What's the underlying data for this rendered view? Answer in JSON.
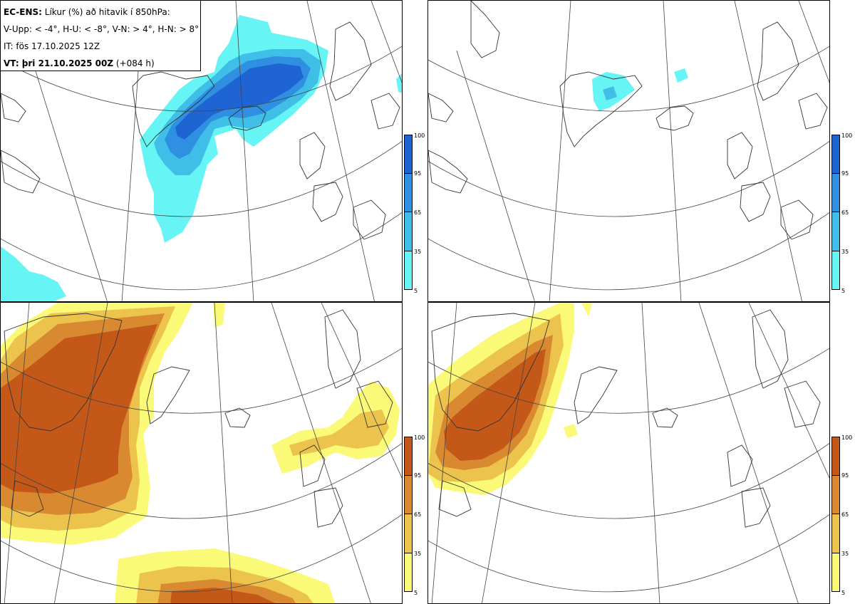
{
  "header": {
    "line1_bold": "EC-ENS:",
    "line1_rest": " Líkur (%) að hitavik í 850hPa:",
    "line2": "V-Upp: < -4°, H-U: < -8°, V-N: > 4°, H-N: > 8°",
    "line3": "IT: fös 17.10.2025 12Z",
    "line4_bold": "VT: þri 21.10.2025 00Z",
    "line4_rest": " (+084 h)"
  },
  "colorbar": {
    "ticks": [
      "100",
      "95",
      "65",
      "35",
      "5"
    ]
  },
  "colors": {
    "cold": [
      "#66f4f4",
      "#3fbfe8",
      "#2f8fe0",
      "#1e64d2"
    ],
    "warm": [
      "#fafa78",
      "#ecc34c",
      "#d98a30",
      "#c45818"
    ],
    "coast": "#333333",
    "grid": "#444444"
  },
  "panels": [
    {
      "name": "V-Upp",
      "scheme": "cold"
    },
    {
      "name": "H-U",
      "scheme": "cold"
    },
    {
      "name": "V-N",
      "scheme": "warm"
    },
    {
      "name": "H-N",
      "scheme": "warm"
    }
  ]
}
